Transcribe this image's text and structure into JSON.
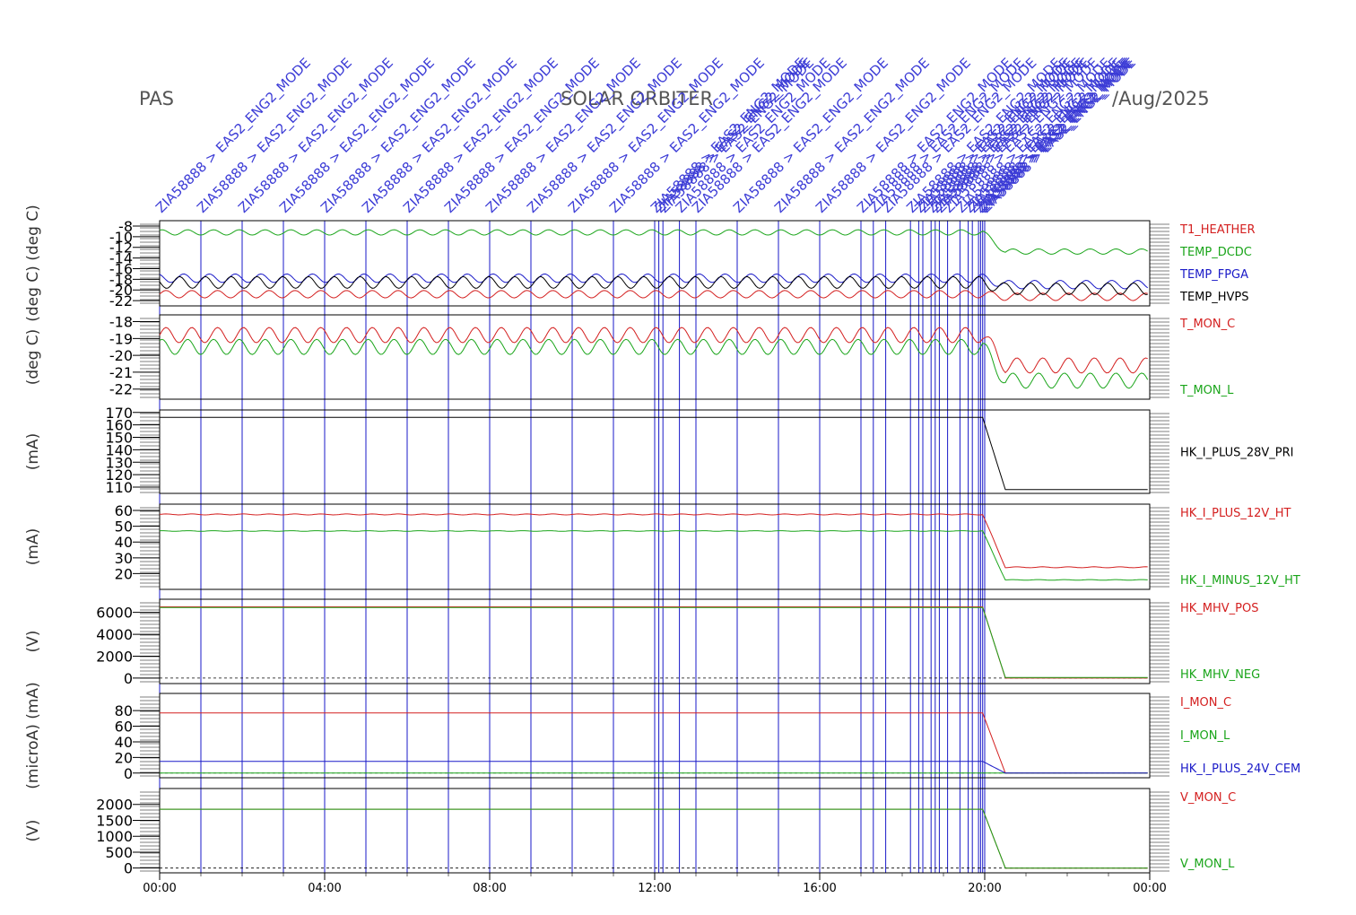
{
  "header": {
    "instrument": "PAS",
    "mission": "SOLAR ORBITER",
    "date": "/Aug/2025"
  },
  "colors": {
    "red": "#d42020",
    "green": "#1aa51a",
    "blue": "#1a1ac8",
    "black": "#000000",
    "event": "#1a1ac8"
  },
  "events": {
    "label": "ZIA58888 > EAS2_ENG2_MODE",
    "times_hours": [
      0,
      1,
      2,
      3,
      4,
      5,
      6,
      7,
      8,
      9,
      10,
      11,
      12,
      12.1,
      12.2,
      12.6,
      13,
      14,
      15,
      16,
      17,
      17.3,
      17.6,
      18.2,
      18.4,
      18.5,
      18.7,
      18.8,
      18.9,
      19.1,
      19.4,
      19.6,
      19.7,
      19.85,
      19.9,
      19.95,
      20.0
    ]
  },
  "chart_data": {
    "type": "line",
    "x_range_hours": [
      0,
      24
    ],
    "x_ticks": [
      "00:00",
      "04:00",
      "08:00",
      "12:00",
      "16:00",
      "20:00",
      "00:00"
    ],
    "panels": [
      {
        "unit": "(deg C)  (deg C)",
        "ylim": [
          -23,
          -7
        ],
        "yticks": [
          "-8",
          "-10",
          "-12",
          "-14",
          "-16",
          "-18",
          "-20",
          "-22"
        ],
        "series": [
          {
            "name": "T1_HEATHER",
            "color": "#d42020",
            "before": -20.8,
            "after": -21.3,
            "amp": 0.7
          },
          {
            "name": "TEMP_DCDC",
            "color": "#1aa51a",
            "before": -9.2,
            "after": -12.8,
            "amp": 0.5
          },
          {
            "name": "TEMP_FPGA",
            "color": "#1a1ac8",
            "before": -17.8,
            "after": -19.0,
            "amp": 0.8
          },
          {
            "name": "TEMP_HVPS",
            "color": "#000000",
            "before": -18.6,
            "after": -19.8,
            "amp": 1.1
          }
        ]
      },
      {
        "unit": "(deg C)",
        "ylim": [
          -22.6,
          -17.6
        ],
        "yticks": [
          "-18",
          "-19",
          "-20",
          "-21",
          "-22"
        ],
        "series": [
          {
            "name": "T_MON_C",
            "color": "#d42020",
            "before": -18.8,
            "after": -20.6,
            "amp": 0.45
          },
          {
            "name": "T_MON_L",
            "color": "#1aa51a",
            "before": -19.5,
            "after": -21.5,
            "amp": 0.45
          }
        ]
      },
      {
        "unit": "(mA)",
        "ylim": [
          105,
          172
        ],
        "yticks": [
          "170",
          "160",
          "150",
          "140",
          "130",
          "120",
          "110"
        ],
        "series": [
          {
            "name": "HK_I_PLUS_28V_PRI",
            "color": "#000000",
            "before": 166,
            "after": 108,
            "amp": 0
          }
        ]
      },
      {
        "unit": "(mA)",
        "ylim": [
          10,
          64
        ],
        "yticks": [
          "60",
          "50",
          "40",
          "30",
          "20"
        ],
        "series": [
          {
            "name": "HK_I_PLUS_12V_HT",
            "color": "#d42020",
            "before": 57.5,
            "after": 24,
            "amp": 0.3
          },
          {
            "name": "HK_I_MINUS_12V_HT",
            "color": "#1aa51a",
            "before": 47,
            "after": 16,
            "amp": 0.2
          }
        ]
      },
      {
        "unit": "(V)",
        "ylim": [
          -500,
          7200
        ],
        "yticks": [
          "6000",
          "4000",
          "2000",
          "0"
        ],
        "series": [
          {
            "name": "HK_MHV_POS",
            "color": "#d42020",
            "before": 6500,
            "after": 0,
            "amp": 0
          },
          {
            "name": "HK_MHV_NEG",
            "color": "#1aa51a",
            "before": 6450,
            "after": 50,
            "amp": 0
          }
        ]
      },
      {
        "unit": "(microA)  (mA)",
        "ylim": [
          -6,
          102
        ],
        "yticks": [
          "80",
          "60",
          "40",
          "20",
          "0"
        ],
        "series": [
          {
            "name": "I_MON_C",
            "color": "#d42020",
            "before": 77,
            "after": 0,
            "amp": 0
          },
          {
            "name": "I_MON_L",
            "color": "#1aa51a",
            "before": 0,
            "after": 0,
            "amp": 0
          },
          {
            "name": "HK_I_PLUS_24V_CEM",
            "color": "#1a1ac8",
            "before": 15,
            "after": 0,
            "amp": 0
          }
        ]
      },
      {
        "unit": "(V)",
        "ylim": [
          -150,
          2500
        ],
        "yticks": [
          "2000",
          "1500",
          "1000",
          "500",
          "0"
        ],
        "series": [
          {
            "name": "V_MON_C",
            "color": "#d42020",
            "before": 1850,
            "after": 0,
            "amp": 0
          },
          {
            "name": "V_MON_L",
            "color": "#1aa51a",
            "before": 1850,
            "after": 0,
            "amp": 0
          }
        ]
      }
    ]
  }
}
